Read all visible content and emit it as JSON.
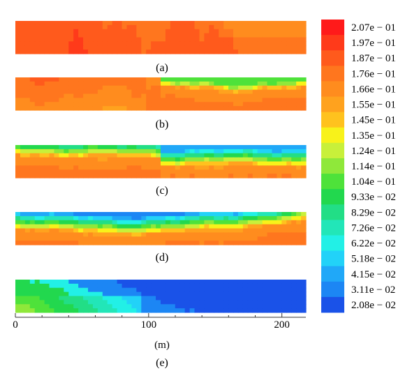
{
  "chart_data": {
    "type": "heatmap",
    "panels": [
      {
        "label": "(a)",
        "stage": 0
      },
      {
        "label": "(b)",
        "stage": 1
      },
      {
        "label": "(c)",
        "stage": 2
      },
      {
        "label": "(d)",
        "stage": 3
      },
      {
        "label": "(e)",
        "stage": 4
      }
    ],
    "xlabel": "(m)",
    "x_ticks": [
      "0",
      "100",
      "200"
    ],
    "x_tick_values": [
      0,
      100,
      200
    ],
    "xlim": [
      0,
      218
    ],
    "colorbar": {
      "labels": [
        "2.07e − 01",
        "1.97e − 01",
        "1.87e − 01",
        "1.76e − 01",
        "1.66e − 01",
        "1.55e − 01",
        "1.45e − 01",
        "1.35e − 01",
        "1.24e − 01",
        "1.14e − 01",
        "1.04e − 01",
        "9.33e − 02",
        "8.29e − 02",
        "7.26e − 02",
        "6.22e − 02",
        "5.18e − 02",
        "4.15e − 02",
        "3.11e − 02",
        "2.08e − 02"
      ],
      "colors": [
        "#ff1a1a",
        "#ff3a1a",
        "#ff5a1c",
        "#ff761e",
        "#ff8c1e",
        "#ffa21e",
        "#ffc21e",
        "#f8f21a",
        "#c8f03a",
        "#8fe83a",
        "#4ee23a",
        "#22d84e",
        "#22de86",
        "#22e6b8",
        "#22f0e6",
        "#22d2f8",
        "#20a8f8",
        "#1c86f4",
        "#1a52e8"
      ]
    }
  }
}
